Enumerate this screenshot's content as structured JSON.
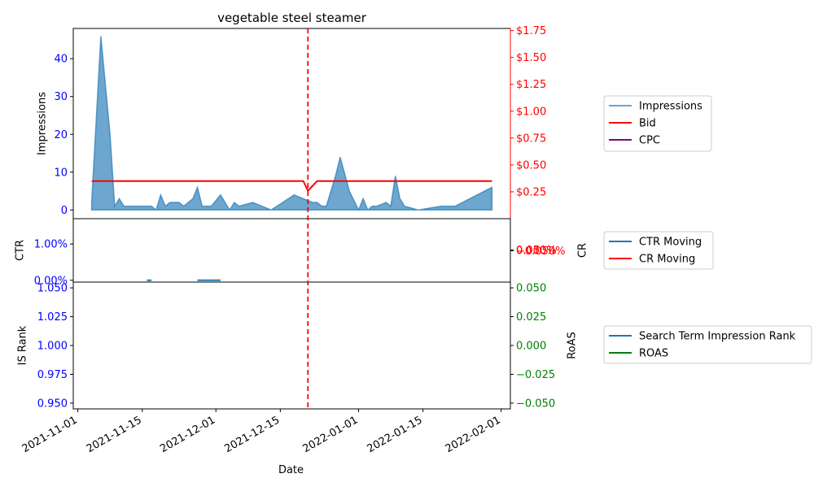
{
  "chart_data": {
    "type": "area",
    "title": "vegetable steel steamer",
    "xlabel": "Date",
    "x_ticks": [
      "2021-11-01",
      "2021-11-15",
      "2021-12-01",
      "2021-12-15",
      "2022-01-01",
      "2022-01-15",
      "2022-02-01"
    ],
    "x_range": [
      "2021-10-31",
      "2022-02-03"
    ],
    "marker_line": {
      "date": "2021-12-21",
      "color": "#ff0000",
      "style": "dashed"
    },
    "panels": [
      {
        "left_axis": {
          "label": "Impressions",
          "ylim": [
            -2.3,
            48
          ],
          "ticks": [
            "0",
            "10",
            "20",
            "30",
            "40"
          ],
          "tick_color": "#0000ff"
        },
        "right_axis": {
          "label": "",
          "ylim": [
            0.0,
            1.77
          ],
          "ticks": [
            "$0.25",
            "$0.50",
            "$0.75",
            "$1.00",
            "$1.25",
            "$1.50",
            "$1.75"
          ],
          "tick_color": "#ff0000"
        },
        "series": [
          {
            "name": "Impressions",
            "axis": "left",
            "color": "#1f77b4",
            "kind": "area",
            "points": [
              [
                "2021-11-04",
                2
              ],
              [
                "2021-11-06",
                46
              ],
              [
                "2021-11-08",
                20
              ],
              [
                "2021-11-09",
                1
              ],
              [
                "2021-11-10",
                3
              ],
              [
                "2021-11-11",
                1
              ],
              [
                "2021-11-13",
                1
              ],
              [
                "2021-11-15",
                1
              ],
              [
                "2021-11-17",
                1
              ],
              [
                "2021-11-18",
                0
              ],
              [
                "2021-11-19",
                4
              ],
              [
                "2021-11-20",
                1
              ],
              [
                "2021-11-21",
                2
              ],
              [
                "2021-11-23",
                2
              ],
              [
                "2021-11-24",
                1
              ],
              [
                "2021-11-26",
                3
              ],
              [
                "2021-11-27",
                6
              ],
              [
                "2021-11-28",
                1
              ],
              [
                "2021-11-30",
                1
              ],
              [
                "2021-12-02",
                4
              ],
              [
                "2021-12-04",
                0
              ],
              [
                "2021-12-05",
                2
              ],
              [
                "2021-12-06",
                1
              ],
              [
                "2021-12-09",
                2
              ],
              [
                "2021-12-11",
                1
              ],
              [
                "2021-12-13",
                0
              ],
              [
                "2021-12-18",
                4
              ],
              [
                "2021-12-22",
                2
              ],
              [
                "2021-12-23",
                2
              ],
              [
                "2021-12-24",
                1
              ],
              [
                "2021-12-25",
                1
              ],
              [
                "2021-12-27",
                9
              ],
              [
                "2021-12-28",
                14
              ],
              [
                "2021-12-30",
                5
              ],
              [
                "2022-01-01",
                0
              ],
              [
                "2022-01-02",
                3
              ],
              [
                "2022-01-03",
                0
              ],
              [
                "2022-01-04",
                1
              ],
              [
                "2022-01-05",
                1
              ],
              [
                "2022-01-07",
                2
              ],
              [
                "2022-01-08",
                1
              ],
              [
                "2022-01-09",
                9
              ],
              [
                "2022-01-10",
                3
              ],
              [
                "2022-01-11",
                1
              ],
              [
                "2022-01-14",
                0
              ],
              [
                "2022-01-19",
                1
              ],
              [
                "2022-01-22",
                1
              ],
              [
                "2022-01-30",
                6
              ]
            ]
          },
          {
            "name": "Bid",
            "axis": "right",
            "color": "#ff0000",
            "kind": "line",
            "points": [
              [
                "2021-11-04",
                0.35
              ],
              [
                "2021-12-20",
                0.35
              ],
              [
                "2021-12-21",
                0.26
              ],
              [
                "2021-12-23",
                0.35
              ],
              [
                "2022-01-30",
                0.35
              ]
            ]
          },
          {
            "name": "CPC",
            "axis": "right",
            "color": "#800080",
            "kind": "line",
            "points": []
          }
        ]
      },
      {
        "left_axis": {
          "label": "CTR",
          "ylim": [
            -0.0005,
            0.017
          ],
          "ticks": [
            "0.00%",
            "1.00%"
          ],
          "tick_color": "#0000ff"
        },
        "right_axis": {
          "label": "CR",
          "ylim": [
            -0.05,
            0.05
          ],
          "ticks": [
            "−0.050%",
            "0.000%",
            "0.050%"
          ],
          "tick_color": "#ff0000"
        },
        "series": [
          {
            "name": "CTR Moving",
            "axis": "left",
            "color": "#1f77b4",
            "kind": "segments",
            "segments": [
              [
                [
                  "2021-11-16",
                  0.0
                ],
                [
                  "2021-11-17",
                  0.0
                ]
              ],
              [
                [
                  "2021-11-27",
                  0.0
                ],
                [
                  "2021-12-02",
                  0.0
                ]
              ]
            ]
          },
          {
            "name": "CR Moving",
            "axis": "right",
            "color": "#ff0000",
            "kind": "line",
            "points": []
          }
        ]
      },
      {
        "left_axis": {
          "label": "IS Rank",
          "ylim": [
            0.945,
            1.055
          ],
          "ticks": [
            "0.950",
            "0.975",
            "1.000",
            "1.025",
            "1.050"
          ],
          "tick_color": "#0000ff"
        },
        "right_axis": {
          "label": "RoAS",
          "ylim": [
            -0.055,
            0.055
          ],
          "ticks": [
            "−0.050",
            "−0.025",
            "0.000",
            "0.025",
            "0.050"
          ],
          "tick_color": "#008000"
        },
        "series": [
          {
            "name": "Search Term Impression Rank",
            "axis": "left",
            "color": "#1f77b4",
            "kind": "line",
            "points": []
          },
          {
            "name": "ROAS",
            "axis": "right",
            "color": "#008000",
            "kind": "line",
            "points": []
          }
        ]
      }
    ],
    "legends": [
      {
        "panel": 0,
        "entries": [
          {
            "label": "Impressions",
            "color": "#1f77b4",
            "alpha": 0.65
          },
          {
            "label": "Bid",
            "color": "#ff0000",
            "alpha": 1
          },
          {
            "label": "CPC",
            "color": "#800080",
            "alpha": 1
          }
        ]
      },
      {
        "panel": 1,
        "entries": [
          {
            "label": "CTR Moving",
            "color": "#1f77b4",
            "alpha": 1
          },
          {
            "label": "CR Moving",
            "color": "#ff0000",
            "alpha": 1
          }
        ]
      },
      {
        "panel": 2,
        "entries": [
          {
            "label": "Search Term Impression Rank",
            "color": "#1f77b4",
            "alpha": 1
          },
          {
            "label": "ROAS",
            "color": "#008000",
            "alpha": 1
          }
        ]
      }
    ]
  }
}
